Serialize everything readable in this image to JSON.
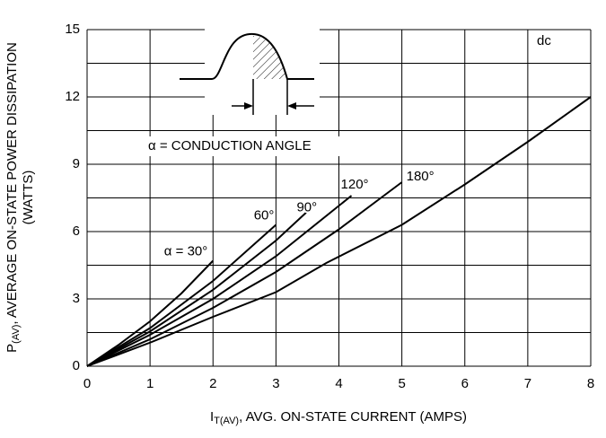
{
  "chart_data": {
    "type": "line",
    "xlabel": {
      "main": "I",
      "sub": "T(AV)",
      "rest": ", AVG. ON-STATE CURRENT (AMPS)"
    },
    "ylabel": {
      "main": "P",
      "sub": "(AV)",
      "rest": ", AVERAGE ON-STATE POWER DISSIPATION",
      "line2": "(WATTS)"
    },
    "annotations": [
      "α = CONDUCTION ANGLE",
      "a"
    ],
    "xlim": [
      0,
      8
    ],
    "xticks": [
      0,
      1,
      2,
      3,
      4,
      5,
      6,
      7,
      8
    ],
    "ylim": [
      0,
      15
    ],
    "yticks": [
      0,
      3,
      6,
      9,
      12,
      15
    ],
    "minor_yticks": [
      1.5,
      4.5,
      7.5,
      10.5,
      13.5
    ],
    "grid": true,
    "series": [
      {
        "name": "α = 30°",
        "color": "#000000",
        "x": [
          0,
          0.5,
          1,
          1.5,
          2
        ],
        "values": [
          0,
          0.95,
          2.0,
          3.25,
          4.7
        ]
      },
      {
        "name": "60°",
        "color": "#000000",
        "x": [
          0,
          1,
          2,
          3
        ],
        "values": [
          0,
          1.7,
          3.8,
          6.3
        ]
      },
      {
        "name": "90°",
        "color": "#000000",
        "x": [
          0,
          1,
          2,
          3,
          3.5
        ],
        "values": [
          0,
          1.55,
          3.4,
          5.6,
          6.9
        ]
      },
      {
        "name": "120°",
        "color": "#000000",
        "x": [
          0,
          1,
          2,
          3,
          4.2
        ],
        "values": [
          0,
          1.4,
          3.0,
          4.9,
          7.6
        ]
      },
      {
        "name": "180°",
        "color": "#000000",
        "x": [
          0,
          1,
          2,
          3,
          4,
          5
        ],
        "values": [
          0,
          1.2,
          2.6,
          4.2,
          6.1,
          8.2
        ]
      },
      {
        "name": "dc",
        "color": "#000000",
        "x": [
          0,
          1,
          2,
          3,
          3.8,
          5,
          6,
          7,
          8
        ],
        "values": [
          0,
          1.05,
          2.2,
          3.3,
          4.6,
          6.3,
          8.1,
          10.0,
          12.0
        ]
      }
    ]
  }
}
